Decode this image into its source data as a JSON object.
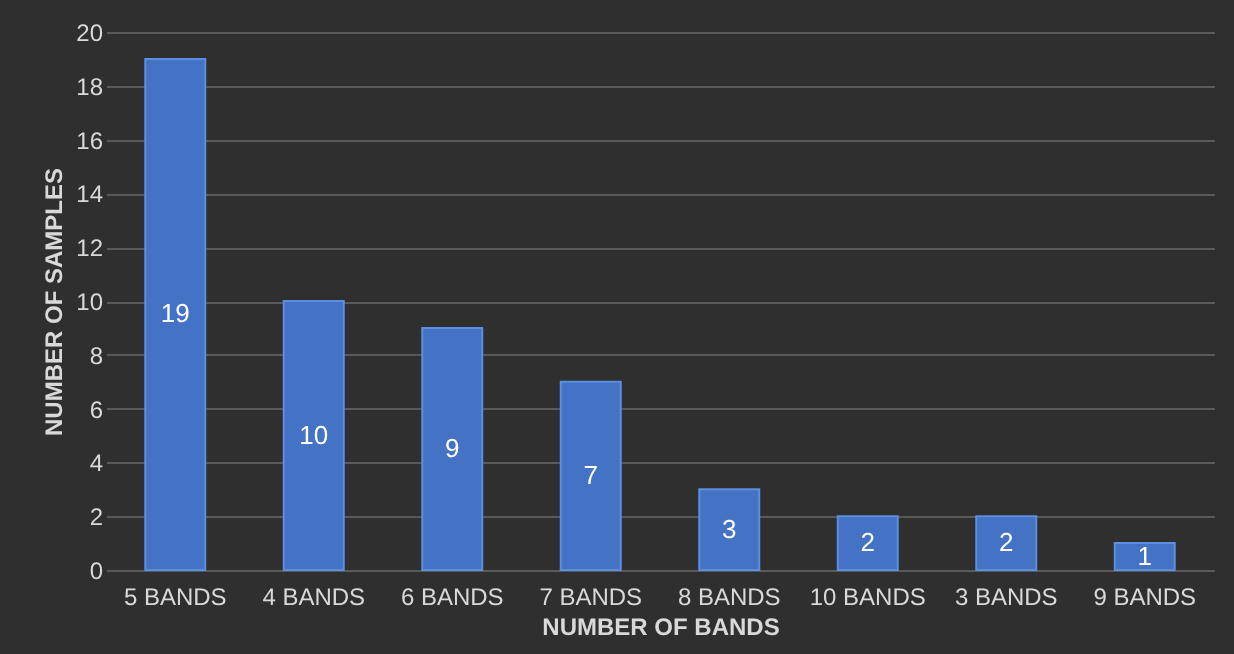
{
  "chart_data": {
    "type": "bar",
    "xlabel": "NUMBER OF BANDS",
    "ylabel": "NUMBER OF SAMPLES",
    "categories": [
      "5 BANDS",
      "4 BANDS",
      "6 BANDS",
      "7 BANDS",
      "8 BANDS",
      "10 BANDS",
      "3 BANDS",
      "9 BANDS"
    ],
    "values": [
      19,
      10,
      9,
      7,
      3,
      2,
      2,
      1
    ],
    "color": "#4472c4",
    "ylim": [
      0,
      20
    ],
    "yticks": [
      0,
      2,
      4,
      6,
      8,
      10,
      12,
      14,
      16,
      18,
      20
    ],
    "grid": "y",
    "data_labels": true
  }
}
